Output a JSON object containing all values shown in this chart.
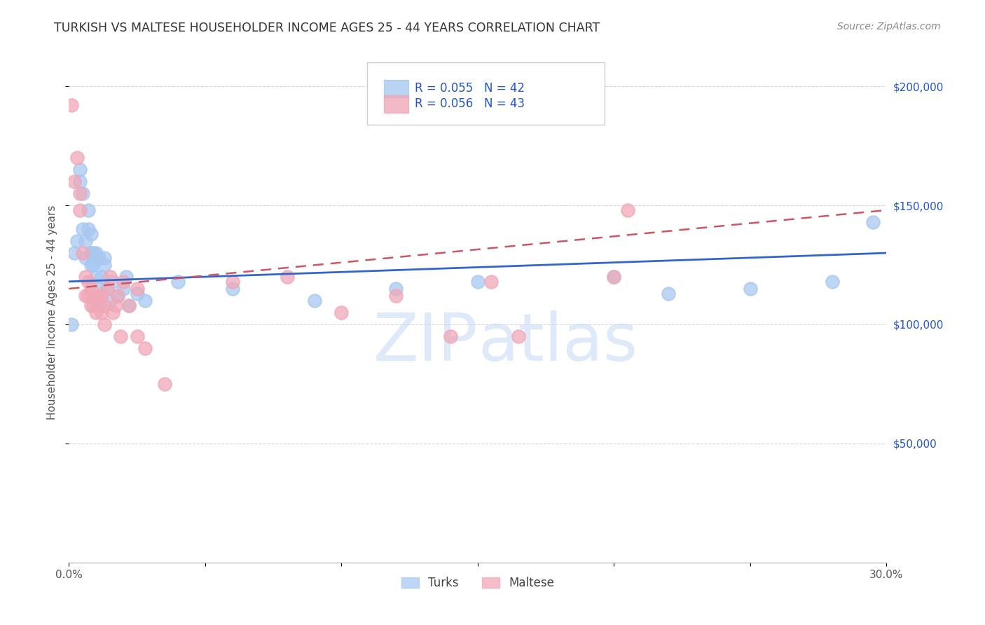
{
  "title": "TURKISH VS MALTESE HOUSEHOLDER INCOME AGES 25 - 44 YEARS CORRELATION CHART",
  "source": "Source: ZipAtlas.com",
  "ylabel": "Householder Income Ages 25 - 44 years",
  "xlim": [
    0,
    0.3
  ],
  "ylim": [
    0,
    210000
  ],
  "xticks": [
    0.0,
    0.05,
    0.1,
    0.15,
    0.2,
    0.25,
    0.3
  ],
  "xticklabels": [
    "0.0%",
    "",
    "",
    "",
    "",
    "",
    "30.0%"
  ],
  "ytick_positions": [
    50000,
    100000,
    150000,
    200000
  ],
  "ytick_labels": [
    "$50,000",
    "$100,000",
    "$150,000",
    "$200,000"
  ],
  "watermark_zip": "ZIP",
  "watermark_atlas": "atlas",
  "turks_color": "#a8c8f0",
  "maltese_color": "#f0a8b8",
  "turks_line_color": "#3366cc",
  "maltese_line_color": "#cc5566",
  "legend_color": "#2255cc",
  "title_color": "#333333",
  "source_color": "#888888",
  "turks_x": [
    0.001,
    0.002,
    0.003,
    0.004,
    0.004,
    0.005,
    0.005,
    0.006,
    0.006,
    0.007,
    0.007,
    0.008,
    0.008,
    0.008,
    0.009,
    0.009,
    0.01,
    0.01,
    0.011,
    0.011,
    0.012,
    0.013,
    0.013,
    0.014,
    0.015,
    0.016,
    0.018,
    0.02,
    0.021,
    0.022,
    0.025,
    0.028,
    0.04,
    0.06,
    0.09,
    0.12,
    0.15,
    0.2,
    0.22,
    0.25,
    0.28,
    0.295
  ],
  "turks_y": [
    100000,
    130000,
    135000,
    165000,
    160000,
    140000,
    155000,
    128000,
    135000,
    140000,
    148000,
    125000,
    130000,
    138000,
    125000,
    130000,
    130000,
    120000,
    128000,
    115000,
    120000,
    125000,
    128000,
    115000,
    110000,
    118000,
    112000,
    115000,
    120000,
    108000,
    113000,
    110000,
    118000,
    115000,
    110000,
    115000,
    118000,
    120000,
    113000,
    115000,
    118000,
    143000
  ],
  "maltese_x": [
    0.001,
    0.002,
    0.003,
    0.004,
    0.004,
    0.005,
    0.006,
    0.006,
    0.007,
    0.007,
    0.008,
    0.008,
    0.009,
    0.009,
    0.01,
    0.01,
    0.011,
    0.011,
    0.012,
    0.012,
    0.013,
    0.013,
    0.014,
    0.015,
    0.016,
    0.017,
    0.018,
    0.019,
    0.02,
    0.022,
    0.025,
    0.025,
    0.028,
    0.035,
    0.06,
    0.08,
    0.1,
    0.12,
    0.14,
    0.155,
    0.165,
    0.2,
    0.205
  ],
  "maltese_y": [
    192000,
    160000,
    170000,
    155000,
    148000,
    130000,
    120000,
    112000,
    118000,
    112000,
    108000,
    115000,
    112000,
    108000,
    105000,
    112000,
    110000,
    108000,
    105000,
    112000,
    108000,
    100000,
    115000,
    120000,
    105000,
    108000,
    112000,
    95000,
    118000,
    108000,
    115000,
    95000,
    90000,
    75000,
    118000,
    120000,
    105000,
    112000,
    95000,
    118000,
    95000,
    120000,
    148000
  ]
}
